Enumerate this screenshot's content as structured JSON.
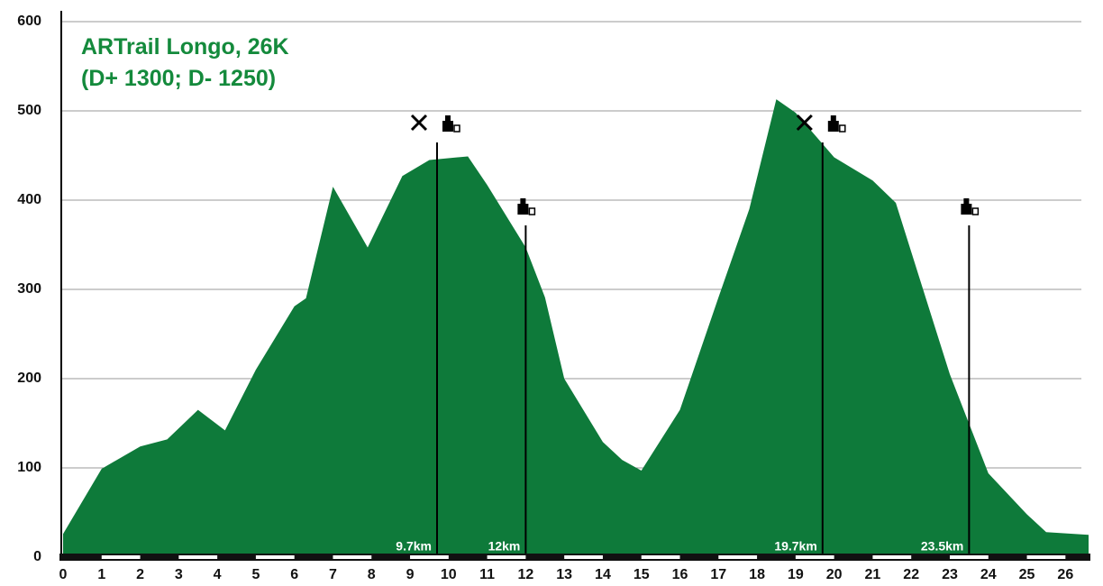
{
  "chart_data": {
    "type": "area",
    "title": [
      "ARTrail Longo,  26K",
      "(D+ 1300; D- 1250)"
    ],
    "color": "#0e7a3a",
    "x": [
      0,
      1,
      2,
      2.7,
      3.5,
      4.2,
      5,
      6,
      6.3,
      7,
      7.9,
      8.8,
      9.5,
      10.5,
      11,
      12,
      12.5,
      13,
      14,
      14.5,
      15,
      16,
      17,
      17.8,
      18.5,
      19,
      20,
      21,
      21.6,
      22,
      23,
      24,
      25,
      25.5,
      26.6
    ],
    "values": [
      26,
      99,
      124,
      132,
      165,
      142,
      210,
      281,
      290,
      415,
      347,
      427,
      445,
      449,
      417,
      347,
      291,
      200,
      129,
      109,
      97,
      165,
      291,
      390,
      513,
      498,
      448,
      422,
      397,
      342,
      205,
      94,
      48,
      28,
      25
    ],
    "xlim": [
      0,
      26.6
    ],
    "xticks": [
      0,
      1,
      2,
      3,
      4,
      5,
      6,
      7,
      8,
      9,
      10,
      11,
      12,
      13,
      14,
      15,
      16,
      17,
      18,
      19,
      20,
      21,
      22,
      23,
      24,
      25,
      26
    ],
    "ylim": [
      0,
      600
    ],
    "yticks": [
      0,
      100,
      200,
      300,
      400,
      500,
      600
    ],
    "grid": true,
    "markers": [
      {
        "km": 9.7,
        "label": "9.7km",
        "food": true
      },
      {
        "km": 12,
        "label": "12km",
        "food": false
      },
      {
        "km": 19.7,
        "label": "19.7km",
        "food": true
      },
      {
        "km": 23.5,
        "label": "23.5km",
        "food": false
      }
    ]
  }
}
